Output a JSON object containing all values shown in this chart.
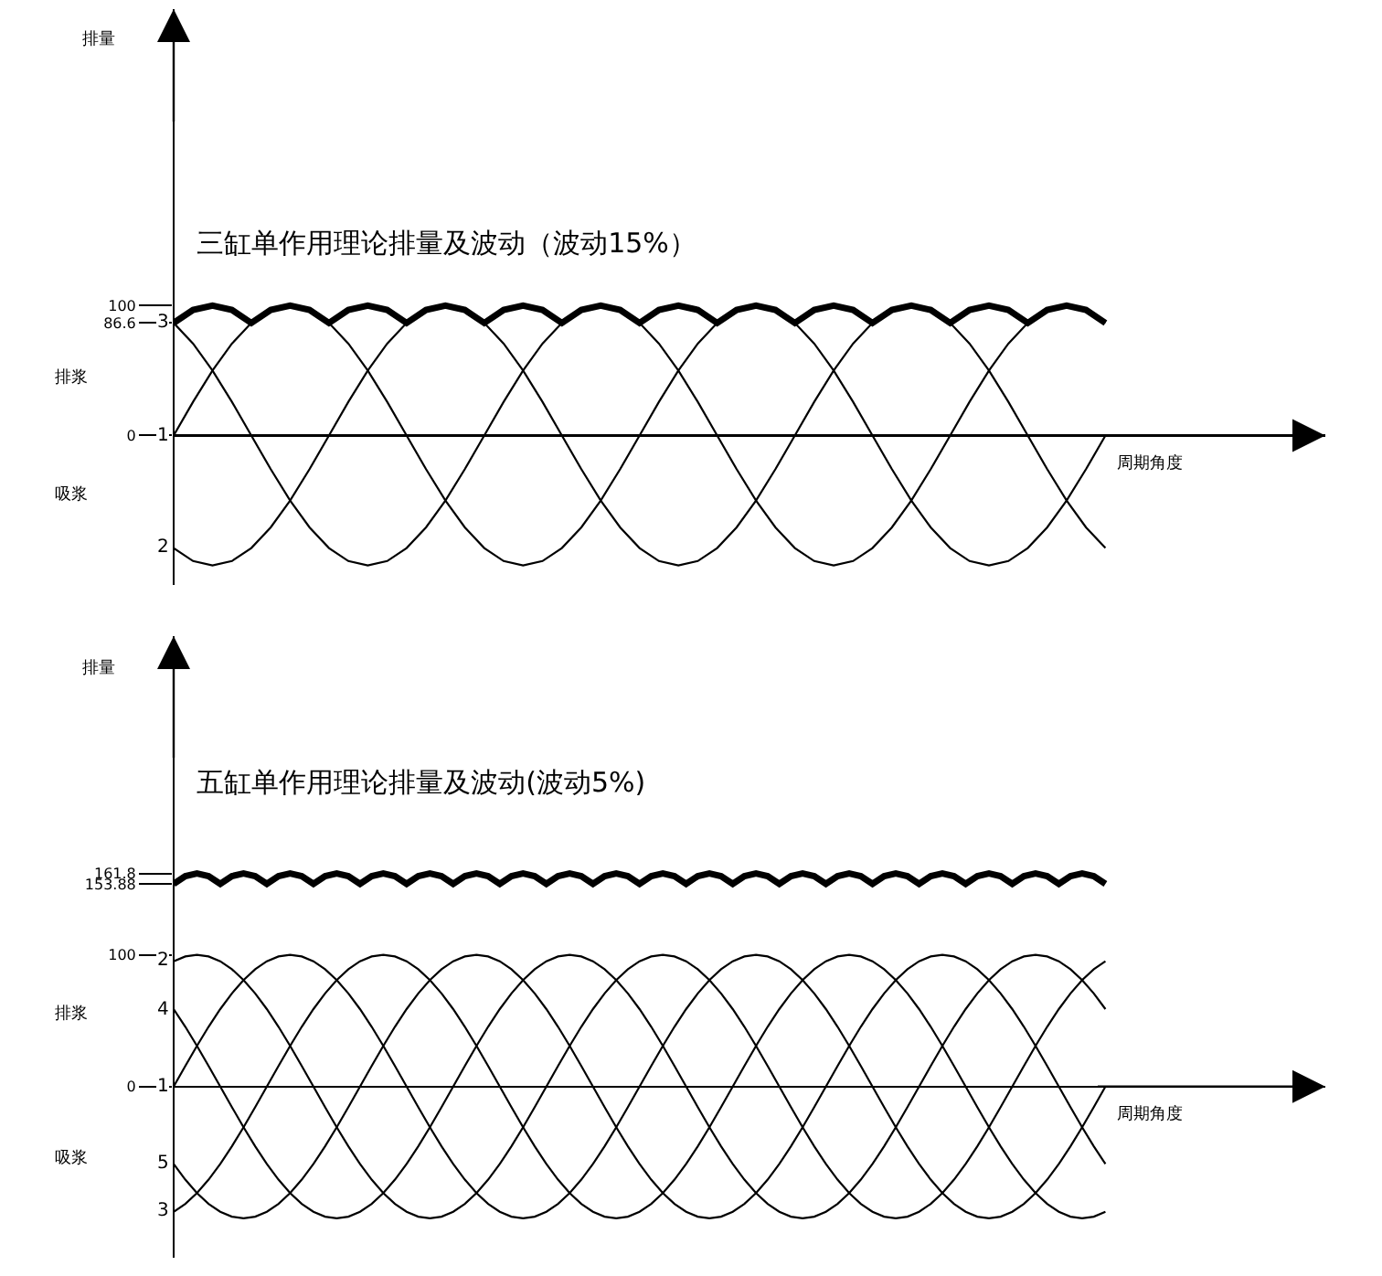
{
  "chart_data": [
    {
      "type": "line",
      "title": "三缸单作用理论排量及波动（波动15%）",
      "xlabel": "周期角度",
      "ylabel": "排量",
      "annotations": [
        "排浆",
        "吸浆"
      ],
      "ylim": [
        -115,
        328
      ],
      "yticks": [
        100,
        86.6,
        0
      ],
      "tick_labels": "y",
      "categories": [
        null,
        null,
        null,
        null,
        null,
        null,
        null,
        null,
        null,
        null,
        null,
        null,
        null,
        null,
        null,
        null,
        null,
        null,
        null,
        null,
        null,
        null,
        null,
        null,
        null,
        null,
        null,
        null,
        null,
        null,
        null,
        null,
        null,
        null,
        null,
        null,
        null,
        null,
        null,
        null,
        null,
        null,
        null,
        null,
        null,
        null,
        null,
        null,
        null
      ],
      "series": [
        {
          "color": "#000000",
          "values": [
            86.6,
            96.6,
            100,
            96.6,
            86.6,
            96.6,
            100,
            96.6,
            86.6,
            96.6,
            100,
            96.6,
            86.6,
            96.6,
            100,
            96.6,
            86.6,
            96.6,
            100,
            96.6,
            86.6,
            96.6,
            100,
            96.6,
            86.6,
            96.6,
            100,
            96.6,
            86.6,
            96.6,
            100,
            96.6,
            86.6,
            96.6,
            100,
            96.6,
            86.6,
            96.6,
            100,
            96.6,
            86.6,
            96.6,
            100,
            96.6,
            86.6,
            96.6,
            100,
            96.6,
            86.6
          ]
        },
        {
          "name": "1",
          "color": "#000000",
          "values": [
            0,
            25.9,
            50,
            70.7,
            86.6,
            96.6,
            100,
            96.6,
            86.6,
            70.7,
            50,
            25.9,
            0,
            -25.9,
            -50,
            -70.7,
            -86.6,
            -96.6,
            -100,
            -96.6,
            -86.6,
            -70.7,
            -50,
            -25.9,
            0,
            25.9,
            50,
            70.7,
            86.6,
            96.6,
            100,
            96.6,
            86.6,
            70.7,
            50,
            25.9,
            0,
            -25.9,
            -50,
            -70.7,
            -86.6,
            -96.6,
            -100,
            -96.6,
            -86.6,
            -70.7,
            -50,
            -25.9,
            0
          ]
        },
        {
          "name": "2",
          "color": "#000000",
          "values": [
            -86.6,
            -96.6,
            -100,
            -96.6,
            -86.6,
            -70.7,
            -50,
            -25.9,
            0,
            25.9,
            50,
            70.7,
            86.6,
            96.6,
            100,
            96.6,
            86.6,
            70.7,
            50,
            25.9,
            0,
            -25.9,
            -50,
            -70.7,
            -86.6,
            -96.6,
            -100,
            -96.6,
            -86.6,
            -70.7,
            -50,
            -25.9,
            0,
            25.9,
            50,
            70.7,
            86.6,
            96.6,
            100,
            96.6,
            86.6,
            70.7,
            50,
            25.9,
            0,
            -25.9,
            -50,
            -70.7,
            -86.6
          ]
        },
        {
          "name": "3",
          "color": "#000000",
          "values": [
            86.6,
            70.7,
            50,
            25.9,
            0,
            -25.9,
            -50,
            -70.7,
            -86.6,
            -96.6,
            -100,
            -96.6,
            -86.6,
            -70.7,
            -50,
            -25.9,
            0,
            25.9,
            50,
            70.7,
            86.6,
            96.6,
            100,
            96.6,
            86.6,
            70.7,
            50,
            25.9,
            0,
            -25.9,
            -50,
            -70.7,
            -86.6,
            -96.6,
            -100,
            -96.6,
            -86.6,
            -70.7,
            -50,
            -25.9,
            0,
            25.9,
            50,
            70.7,
            86.6,
            96.6,
            100,
            96.6,
            86.6
          ]
        }
      ]
    },
    {
      "type": "line",
      "title": "五缸单作用理论排量及波动(波动5%)",
      "xlabel": "周期角度",
      "ylabel": "排量",
      "annotations": [
        "排浆",
        "吸浆"
      ],
      "ylim": [
        -130,
        342
      ],
      "yticks": [
        161.8,
        153.88,
        100,
        0
      ],
      "tick_labels": "y",
      "categories": [
        null,
        null,
        null,
        null,
        null,
        null,
        null,
        null,
        null,
        null,
        null,
        null,
        null,
        null,
        null,
        null,
        null,
        null,
        null,
        null,
        null,
        null,
        null,
        null,
        null,
        null,
        null,
        null,
        null,
        null,
        null,
        null,
        null,
        null,
        null,
        null,
        null,
        null,
        null,
        null,
        null,
        null,
        null,
        null,
        null,
        null,
        null,
        null,
        null,
        null,
        null,
        null,
        null,
        null,
        null,
        null,
        null,
        null,
        null,
        null,
        null,
        null,
        null,
        null,
        null,
        null,
        null,
        null,
        null,
        null,
        null,
        null,
        null,
        null,
        null,
        null,
        null,
        null,
        null,
        null,
        null
      ],
      "series": [
        {
          "color": "#000000",
          "values": [
            153.88,
            159.8,
            161.8,
            159.8,
            153.88,
            159.8,
            161.8,
            159.8,
            153.88,
            159.8,
            161.8,
            159.8,
            153.88,
            159.8,
            161.8,
            159.8,
            153.88,
            159.8,
            161.8,
            159.8,
            153.88,
            159.8,
            161.8,
            159.8,
            153.88,
            159.8,
            161.8,
            159.8,
            153.88,
            159.8,
            161.8,
            159.8,
            153.88,
            159.8,
            161.8,
            159.8,
            153.88,
            159.8,
            161.8,
            159.8,
            153.88,
            159.8,
            161.8,
            159.8,
            153.88,
            159.8,
            161.8,
            159.8,
            153.88,
            159.8,
            161.8,
            159.8,
            153.88,
            159.8,
            161.8,
            159.8,
            153.88,
            159.8,
            161.8,
            159.8,
            153.88,
            159.8,
            161.8,
            159.8,
            153.88,
            159.8,
            161.8,
            159.8,
            153.88,
            159.8,
            161.8,
            159.8,
            153.88,
            159.8,
            161.8,
            159.8,
            153.88,
            159.8,
            161.8,
            159.8,
            153.88
          ]
        },
        {
          "name": "1",
          "color": "#000000",
          "values": [
            0,
            15.6,
            30.9,
            45.4,
            58.8,
            70.7,
            80.9,
            89.1,
            95.1,
            98.8,
            100,
            98.8,
            95.1,
            89.1,
            80.9,
            70.7,
            58.8,
            45.4,
            30.9,
            15.6,
            0,
            -15.6,
            -30.9,
            -45.4,
            -58.8,
            -70.7,
            -80.9,
            -89.1,
            -95.1,
            -98.8,
            -100,
            -98.8,
            -95.1,
            -89.1,
            -80.9,
            -70.7,
            -58.8,
            -45.4,
            -30.9,
            -15.6,
            0,
            15.6,
            30.9,
            45.4,
            58.8,
            70.7,
            80.9,
            89.1,
            95.1,
            98.8,
            100,
            98.8,
            95.1,
            89.1,
            80.9,
            70.7,
            58.8,
            45.4,
            30.9,
            15.6,
            0,
            -15.6,
            -30.9,
            -45.4,
            -58.8,
            -70.7,
            -80.9,
            -89.1,
            -95.1,
            -98.8,
            -100,
            -98.8,
            -95.1,
            -89.1,
            -80.9,
            -70.7,
            -58.8,
            -45.4,
            -30.9,
            -15.6,
            0
          ]
        },
        {
          "name": "2",
          "color": "#000000",
          "values": [
            95.1,
            98.8,
            100,
            98.8,
            95.1,
            89.1,
            80.9,
            70.7,
            58.8,
            45.4,
            30.9,
            15.6,
            0,
            -15.6,
            -30.9,
            -45.4,
            -58.8,
            -70.7,
            -80.9,
            -89.1,
            -95.1,
            -98.8,
            -100,
            -98.8,
            -95.1,
            -89.1,
            -80.9,
            -70.7,
            -58.8,
            -45.4,
            -30.9,
            -15.6,
            0,
            15.6,
            30.9,
            45.4,
            58.8,
            70.7,
            80.9,
            89.1,
            95.1,
            98.8,
            100,
            98.8,
            95.1,
            89.1,
            80.9,
            70.7,
            58.8,
            45.4,
            30.9,
            15.6,
            0,
            -15.6,
            -30.9,
            -45.4,
            -58.8,
            -70.7,
            -80.9,
            -89.1,
            -95.1,
            -98.8,
            -100,
            -98.8,
            -95.1,
            -89.1,
            -80.9,
            -70.7,
            -58.8,
            -45.4,
            -30.9,
            -15.6,
            0,
            15.6,
            30.9,
            45.4,
            58.8,
            70.7,
            80.9,
            89.1,
            95.1
          ]
        },
        {
          "name": "4",
          "color": "#000000",
          "values": [
            58.8,
            45.4,
            30.9,
            15.6,
            0,
            -15.6,
            -30.9,
            -45.4,
            -58.8,
            -70.7,
            -80.9,
            -89.1,
            -95.1,
            -98.8,
            -100,
            -98.8,
            -95.1,
            -89.1,
            -80.9,
            -70.7,
            -58.8,
            -45.4,
            -30.9,
            -15.6,
            0,
            15.6,
            30.9,
            45.4,
            58.8,
            70.7,
            80.9,
            89.1,
            95.1,
            98.8,
            100,
            98.8,
            95.1,
            89.1,
            80.9,
            70.7,
            58.8,
            45.4,
            30.9,
            15.6,
            0,
            -15.6,
            -30.9,
            -45.4,
            -58.8,
            -70.7,
            -80.9,
            -89.1,
            -95.1,
            -98.8,
            -100,
            -98.8,
            -95.1,
            -89.1,
            -80.9,
            -70.7,
            -58.8,
            -45.4,
            -30.9,
            -15.6,
            0,
            15.6,
            30.9,
            45.4,
            58.8,
            70.7,
            80.9,
            89.1,
            95.1,
            98.8,
            100,
            98.8,
            95.1,
            89.1,
            80.9,
            70.7,
            58.8
          ]
        },
        {
          "name": "5",
          "color": "#000000",
          "values": [
            -58.8,
            -70.7,
            -80.9,
            -89.1,
            -95.1,
            -98.8,
            -100,
            -98.8,
            -95.1,
            -89.1,
            -80.9,
            -70.7,
            -58.8,
            -45.4,
            -30.9,
            -15.6,
            0,
            15.6,
            30.9,
            45.4,
            58.8,
            70.7,
            80.9,
            89.1,
            95.1,
            98.8,
            100,
            98.8,
            95.1,
            89.1,
            80.9,
            70.7,
            58.8,
            45.4,
            30.9,
            15.6,
            0,
            -15.6,
            -30.9,
            -45.4,
            -58.8,
            -70.7,
            -80.9,
            -89.1,
            -95.1,
            -98.8,
            -100,
            -98.8,
            -95.1,
            -89.1,
            -80.9,
            -70.7,
            -58.8,
            -45.4,
            -30.9,
            -15.6,
            0,
            15.6,
            30.9,
            45.4,
            58.8,
            70.7,
            80.9,
            89.1,
            95.1,
            98.8,
            100,
            98.8,
            95.1,
            89.1,
            80.9,
            70.7,
            58.8,
            45.4,
            30.9,
            15.6,
            0,
            -15.6,
            -30.9,
            -45.4,
            -58.8
          ]
        },
        {
          "name": "3",
          "color": "#000000",
          "values": [
            -95.1,
            -89.1,
            -80.9,
            -70.7,
            -58.8,
            -45.4,
            -30.9,
            -15.6,
            0,
            15.6,
            30.9,
            45.4,
            58.8,
            70.7,
            80.9,
            89.1,
            95.1,
            98.8,
            100,
            98.8,
            95.1,
            89.1,
            80.9,
            70.7,
            58.8,
            45.4,
            30.9,
            15.6,
            0,
            -15.6,
            -30.9,
            -45.4,
            -58.8,
            -70.7,
            -80.9,
            -89.1,
            -95.1,
            -98.8,
            -100,
            -98.8,
            -95.1,
            -89.1,
            -80.9,
            -70.7,
            -58.8,
            -45.4,
            -30.9,
            -15.6,
            0,
            15.6,
            30.9,
            45.4,
            58.8,
            70.7,
            80.9,
            89.1,
            95.1,
            98.8,
            100,
            98.8,
            95.1,
            89.1,
            80.9,
            70.7,
            58.8,
            45.4,
            30.9,
            15.6,
            0,
            -15.6,
            -30.9,
            -45.4,
            -58.8,
            -70.7,
            -80.9,
            -89.1,
            -95.1,
            -98.8,
            -100,
            -98.8,
            -95.1
          ]
        }
      ]
    }
  ]
}
